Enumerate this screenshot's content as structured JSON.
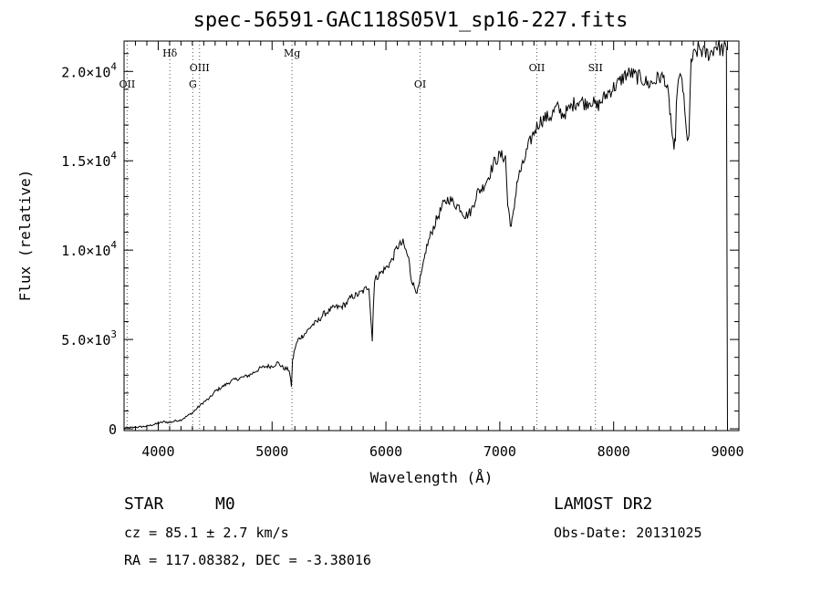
{
  "chart_data": {
    "type": "line",
    "title": "spec-56591-GAC118S05V1_sp16-227.fits",
    "xlabel": "Wavelength (Å)",
    "ylabel": "Flux (relative)",
    "xlim": [
      3700,
      9100
    ],
    "ylim": [
      -100,
      21700
    ],
    "xticks": [
      4000,
      5000,
      6000,
      7000,
      8000,
      9000
    ],
    "xtick_labels": [
      "4000",
      "5000",
      "6000",
      "7000",
      "8000",
      "9000"
    ],
    "yticks": [
      0,
      5000,
      10000,
      15000,
      20000
    ],
    "ytick_labels": [
      {
        "mant": "0",
        "exp": ""
      },
      {
        "mant": "5.0×10",
        "exp": "3"
      },
      {
        "mant": "1.0×10",
        "exp": "4"
      },
      {
        "mant": "1.5×10",
        "exp": "4"
      },
      {
        "mant": "2.0×10",
        "exp": "4"
      }
    ],
    "line_markers": [
      {
        "label": "OII",
        "x": 3727,
        "row": 2
      },
      {
        "label": "Hδ",
        "x": 4102,
        "row": 0
      },
      {
        "label": "G",
        "x": 4304,
        "row": 2
      },
      {
        "label": "OIII",
        "x": 4363,
        "row": 1
      },
      {
        "label": "Mg",
        "x": 5175,
        "row": 0
      },
      {
        "label": "OI",
        "x": 6300,
        "row": 2
      },
      {
        "label": "OII",
        "x": 7325,
        "row": 1
      },
      {
        "label": "SII",
        "x": 7840,
        "row": 1
      }
    ],
    "series": [
      {
        "x": [
          3700,
          3800,
          3900,
          4000,
          4050,
          4100,
          4150,
          4200,
          4250,
          4300,
          4350,
          4400,
          4450,
          4500,
          4550,
          4600,
          4650,
          4700,
          4750,
          4800,
          4850,
          4900,
          4950,
          5000,
          5050,
          5100,
          5150,
          5170,
          5180,
          5200,
          5230,
          5300,
          5350,
          5400,
          5450,
          5500,
          5550,
          5600,
          5650,
          5700,
          5750,
          5800,
          5850,
          5880,
          5890,
          5900,
          5920,
          5950,
          6000,
          6050,
          6100,
          6150,
          6200,
          6220,
          6250,
          6280,
          6300,
          6330,
          6350,
          6400,
          6450,
          6500,
          6550,
          6600,
          6650,
          6700,
          6750,
          6800,
          6850,
          6900,
          6950,
          7000,
          7050,
          7070,
          7100,
          7120,
          7150,
          7180,
          7200,
          7250,
          7300,
          7350,
          7400,
          7450,
          7500,
          7550,
          7600,
          7650,
          7700,
          7750,
          7800,
          7850,
          7900,
          7950,
          8000,
          8050,
          8100,
          8150,
          8200,
          8250,
          8300,
          8350,
          8400,
          8450,
          8480,
          8500,
          8530,
          8542,
          8560,
          8600,
          8640,
          8662,
          8680,
          8700,
          8750,
          8800,
          8850,
          8900,
          8950,
          8990,
          9000,
          9010,
          9100
        ],
        "y": [
          50,
          80,
          150,
          300,
          400,
          350,
          450,
          500,
          700,
          900,
          1200,
          1500,
          1700,
          2100,
          2300,
          2500,
          2700,
          2800,
          2900,
          3000,
          3200,
          3400,
          3500,
          3500,
          3700,
          3400,
          3300,
          2400,
          3800,
          4500,
          5000,
          5400,
          5800,
          6000,
          6400,
          6600,
          6800,
          6800,
          7000,
          7400,
          7500,
          7700,
          8000,
          4900,
          7000,
          8300,
          8500,
          8700,
          9000,
          9400,
          10200,
          10400,
          9500,
          8500,
          7900,
          7700,
          8300,
          9200,
          10000,
          11000,
          11800,
          12500,
          12900,
          12600,
          12400,
          11900,
          12200,
          13200,
          13500,
          14100,
          14900,
          15300,
          15200,
          12500,
          11300,
          12000,
          13800,
          14400,
          14700,
          15800,
          16600,
          17200,
          17400,
          17500,
          18000,
          17600,
          17800,
          18200,
          18400,
          18200,
          18400,
          18000,
          18400,
          18800,
          19100,
          19400,
          19800,
          19900,
          19700,
          19600,
          19300,
          19400,
          19700,
          19600,
          18600,
          17500,
          15300,
          16500,
          19300,
          19700,
          16400,
          16300,
          20600,
          20800,
          21300,
          21000,
          21000,
          21500,
          21200,
          21300,
          -100,
          -100,
          -100
        ]
      }
    ]
  },
  "info": {
    "class": "STAR",
    "subclass": "M0",
    "survey": "LAMOST DR2",
    "cz": "cz = 85.1 ± 2.7 km/s",
    "obs_date": "Obs-Date: 20131025",
    "coords": "RA = 117.08382, DEC =  -3.38016"
  }
}
